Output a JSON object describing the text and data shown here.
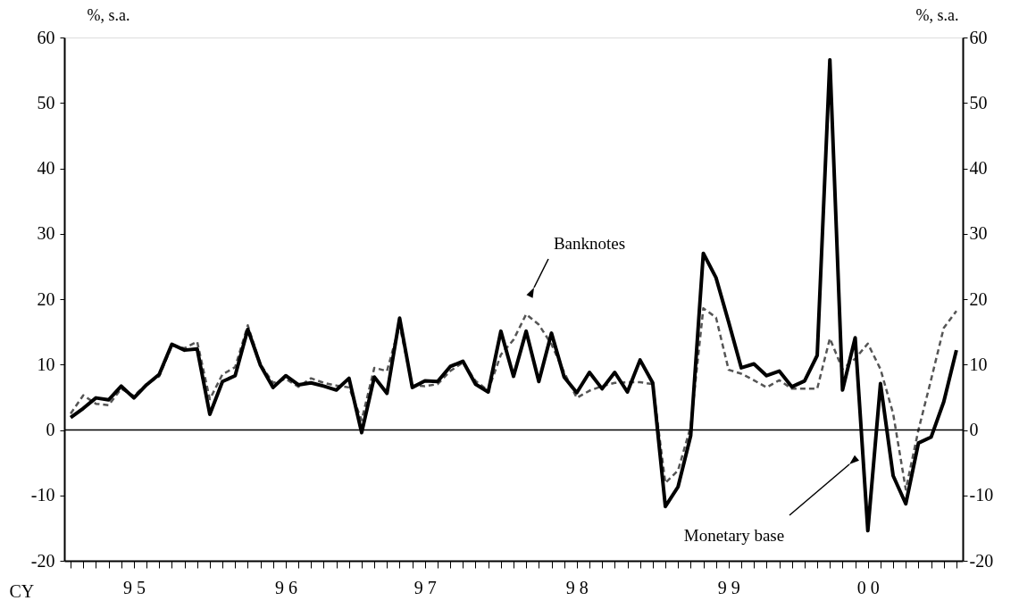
{
  "chart_data": {
    "type": "line",
    "categories": [
      null,
      null,
      null,
      null,
      null,
      "9 5",
      null,
      null,
      null,
      null,
      null,
      null,
      null,
      null,
      null,
      null,
      null,
      "9 6",
      null,
      null,
      null,
      null,
      null,
      null,
      null,
      null,
      null,
      null,
      "9 7",
      null,
      null,
      null,
      null,
      null,
      null,
      null,
      null,
      null,
      null,
      null,
      "9 8",
      null,
      null,
      null,
      null,
      null,
      null,
      null,
      null,
      null,
      null,
      null,
      "9 9",
      null,
      null,
      null,
      null,
      null,
      null,
      null,
      null,
      null,
      null,
      "0 0",
      null,
      null,
      null,
      null,
      null,
      null,
      null
    ],
    "series": [
      {
        "color": "#555555",
        "line_style": "dashed",
        "values": [
          2.5,
          5.3,
          4.0,
          3.8,
          6.3,
          5.2,
          7.0,
          8.2,
          12.9,
          12.5,
          13.5,
          4.7,
          8.5,
          9.6,
          16.0,
          10.0,
          7.2,
          7.8,
          6.6,
          7.9,
          7.2,
          6.8,
          6.5,
          1.5,
          9.5,
          9.0,
          16.0,
          6.8,
          6.7,
          7.0,
          9.0,
          10.3,
          7.5,
          6.0,
          11.5,
          13.8,
          17.7,
          16.1,
          13.1,
          8.8,
          4.9,
          6.0,
          6.7,
          7.2,
          7.3,
          7.3,
          7.0,
          -8.1,
          -6.2,
          0.5,
          18.6,
          17.2,
          9.2,
          8.6,
          7.6,
          6.5,
          7.6,
          6.3,
          6.3,
          6.3,
          14.0,
          9.3,
          10.9,
          13.2,
          9.3,
          2.5,
          -9.1,
          0.0,
          7.7,
          15.6,
          18.2
        ]
      },
      {
        "color": "#000000",
        "line_style": "solid",
        "values": [
          1.9,
          3.3,
          4.9,
          4.6,
          6.7,
          4.9,
          6.9,
          8.5,
          13.1,
          12.2,
          12.4,
          2.4,
          7.4,
          8.3,
          15.4,
          9.9,
          6.5,
          8.3,
          6.9,
          7.2,
          6.7,
          6.1,
          7.9,
          -0.4,
          8.1,
          5.6,
          17.1,
          6.5,
          7.5,
          7.4,
          9.7,
          10.5,
          7.0,
          5.8,
          15.1,
          8.2,
          15.1,
          7.4,
          14.8,
          8.1,
          5.7,
          8.8,
          6.3,
          8.8,
          5.8,
          10.7,
          7.2,
          -11.7,
          -8.7,
          -0.9,
          27.0,
          23.3,
          16.5,
          9.5,
          10.1,
          8.3,
          9.0,
          6.6,
          7.5,
          11.4,
          56.6,
          6.1,
          14.1,
          -15.4,
          7.1,
          -7.0,
          -11.3,
          -2.0,
          -1.1,
          4.3,
          12.2
        ]
      }
    ],
    "xlabel": "CY",
    "ylim": [
      -20,
      60
    ],
    "yticks": [
      -20,
      -10,
      0,
      10,
      20,
      30,
      40,
      50,
      60
    ],
    "y2lim": [
      -20,
      60
    ],
    "y2ticks": [
      -20,
      -10,
      0,
      10,
      20,
      30,
      40,
      50,
      60
    ],
    "ylabel": "%, s.a.",
    "y2label": "%, s.a.",
    "ref_lines": [
      {
        "axis": "y",
        "value": 0,
        "color": "#000000"
      }
    ],
    "annotations": [
      "Banknotes",
      "Monetary base"
    ],
    "grid": false
  }
}
